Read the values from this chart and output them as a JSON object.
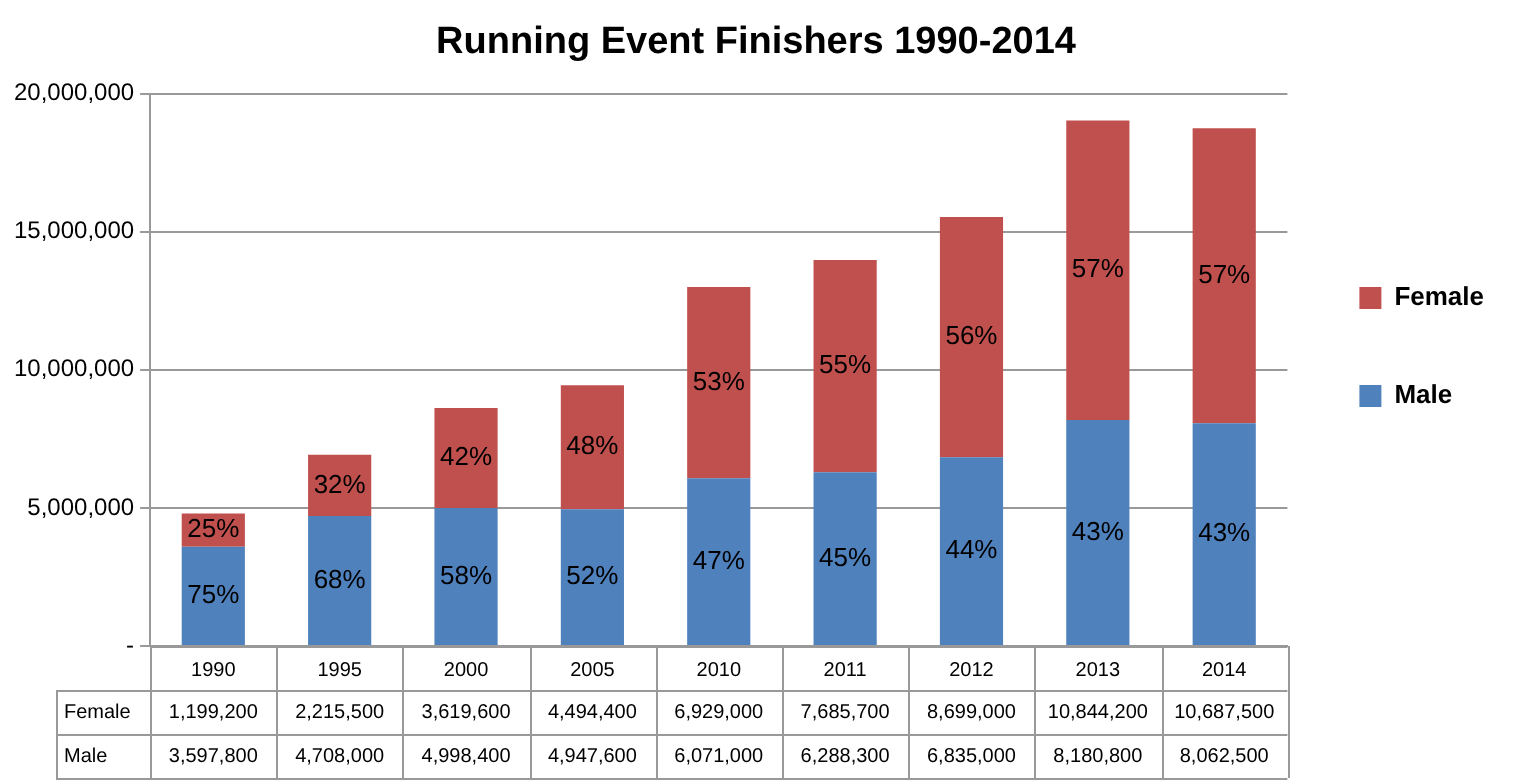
{
  "chart_data": {
    "type": "bar",
    "title": "Running Event Finishers 1990-2014",
    "stacked": true,
    "categories": [
      "1990",
      "1995",
      "2000",
      "2005",
      "2010",
      "2011",
      "2012",
      "2013",
      "2014"
    ],
    "series": [
      {
        "name": "Male",
        "color": "#4f81bd",
        "values": [
          3597800,
          4708000,
          4998400,
          4947600,
          6071000,
          6288300,
          6835000,
          8180800,
          8062500
        ],
        "value_labels": [
          "3,597,800",
          "4,708,000",
          "4,998,400",
          "4,947,600",
          "6,071,000",
          "6,288,300",
          "6,835,000",
          "8,180,800",
          "8,062,500"
        ]
      },
      {
        "name": "Female",
        "color": "#c0504d",
        "values": [
          1199200,
          2215500,
          3619600,
          4494400,
          6929000,
          7685700,
          8699000,
          10844200,
          10687500
        ],
        "value_labels": [
          "1,199,200",
          "2,215,500",
          "3,619,600",
          "4,494,400",
          "6,929,000",
          "7,685,700",
          "8,699,000",
          "10,844,200",
          "10,687,500"
        ]
      }
    ],
    "annotations": [
      "75%",
      "25%",
      "68%",
      "32%",
      "58%",
      "42%",
      "52%",
      "48%",
      "47%",
      "53%",
      "45%",
      "55%",
      "44%",
      "56%",
      "43%",
      "57%",
      "43%",
      "57%"
    ],
    "ylim": [
      0,
      20000000
    ],
    "yticks": [
      {
        "value": 0,
        "label": "-"
      },
      {
        "value": 5000000,
        "label": "5,000,000"
      },
      {
        "value": 10000000,
        "label": "10,000,000"
      },
      {
        "value": 15000000,
        "label": "15,000,000"
      },
      {
        "value": 20000000,
        "label": "20,000,000"
      }
    ],
    "grid": "y",
    "legend": "right"
  }
}
